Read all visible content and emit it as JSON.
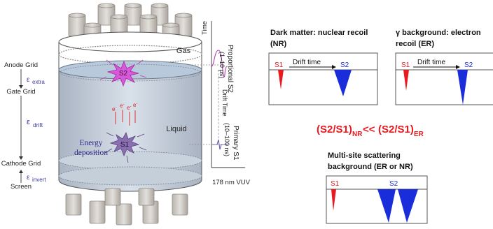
{
  "tpc": {
    "gas_label": "Gas",
    "liquid_label": "Liquid",
    "s2_label": "S2",
    "s1_label": "S1",
    "energy_deposition": [
      "Energy",
      "deposition"
    ],
    "electron_label": "e",
    "electron_sup": "-"
  },
  "grids": {
    "anode": "Anode Grid",
    "gate": "Gate Grid",
    "cathode": "Cathode Grid",
    "screen": "Screen"
  },
  "fields": {
    "symbol": "ε",
    "extra": "extra",
    "drift": "drift",
    "invert": "invert"
  },
  "timeline": {
    "time_axis": "Time",
    "proportional_s2": [
      "Proportional S2",
      "(1–10 μs)"
    ],
    "drift_time": "Drift Time",
    "primary_s1": [
      "Primary S1",
      "(10–100 ns)"
    ],
    "vuv_label": "178 nm VUV"
  },
  "panels": {
    "nr_title": [
      "Dark matter: nuclear recoil",
      "(NR)"
    ],
    "er_title": [
      "γ background: electron",
      "recoil (ER)"
    ],
    "multi_title": [
      "Multi-site scattering",
      "background  (ER or NR)"
    ],
    "drift_time": "Drift time",
    "s1": "S1",
    "s2": "S2"
  },
  "ratio": {
    "left": "(S2/S1)",
    "left_sub": "NR",
    "middle": "<<",
    "right": "(S2/S1)",
    "right_sub": "ER"
  },
  "colors": {
    "s1": "#e8191f",
    "s2": "#1a2ddb",
    "ratio": "#e8191f",
    "field_label": "#3d3a9e",
    "liquid": "#c7d2df",
    "gas": "#ffffff"
  }
}
